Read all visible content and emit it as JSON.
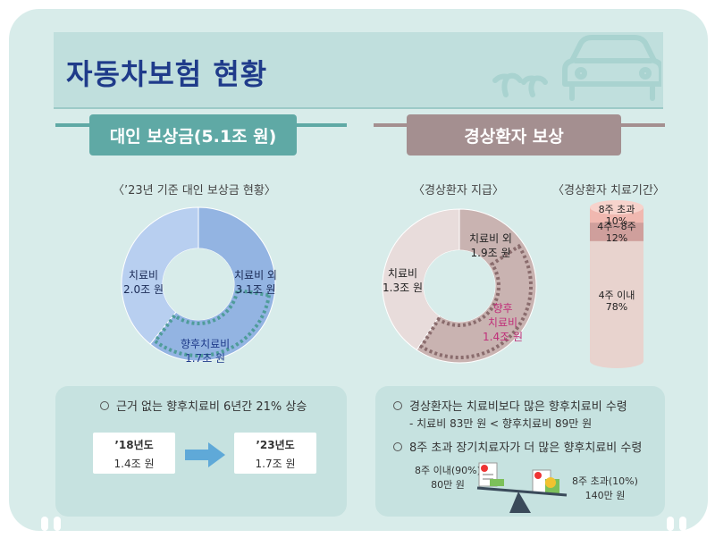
{
  "title": "자동차보험 현황",
  "left_section": {
    "header": "대인 보상금(5.1조 원)",
    "caption": "〈’23년 기준 대인 보상금 현황〉",
    "panel": {
      "bullet": "근거 없는 향후치료비 6년간 21% 상승",
      "from_year": "’18년도",
      "from_value": "1.4조 원",
      "to_year": "’23년도",
      "to_value": "1.7조 원"
    }
  },
  "right_section": {
    "header": "경상환자 보상",
    "caption_pie": "〈경상환자 지급〉",
    "caption_cyl": "〈경상환자 치료기간〉",
    "panel": {
      "bullet1": "경상환자는 치료비보다 많은 향후치료비 수령",
      "sub1": "- 치료비 83만 원 < 향후치료비 89만 원",
      "bullet2": "8주 초과 장기치료자가 더 많은 향후치료비 수령",
      "scale_left_line1": "8주 이내(90%)",
      "scale_left_line2": "80만 원",
      "scale_right_line1": "8주 초과(10%)",
      "scale_right_line2": "140만 원"
    }
  },
  "chart_data": [
    {
      "type": "pie",
      "caption": "〈’23년 기준 대인 보상금 현황〉",
      "unit": "조 원",
      "slices": [
        {
          "label": "치료비 외",
          "value": 3.1,
          "value_text": "3.1조 원",
          "color": "#93b4e2"
        },
        {
          "label": "치료비",
          "value": 2.0,
          "value_text": "2.0조 원",
          "color": "#b8cff0"
        }
      ],
      "highlight": {
        "label": "향후치료비",
        "value": 1.7,
        "value_text": "1.7조 원",
        "label_color": "#1f3b8a"
      }
    },
    {
      "type": "pie",
      "caption": "〈경상환자 지급〉",
      "unit": "조 원",
      "slices": [
        {
          "label": "치료비 외",
          "value": 1.9,
          "value_text": "1.9조 원",
          "color": "#c9b3b1"
        },
        {
          "label": "치료비",
          "value": 1.3,
          "value_text": "1.3조 원",
          "color": "#e8dcdb"
        }
      ],
      "highlight": {
        "label": "향후 치료비",
        "value": 1.4,
        "value_text": "1.4조 원",
        "label_color": "#c0307a"
      }
    },
    {
      "type": "bar",
      "caption": "〈경상환자 치료기간〉",
      "stacked": true,
      "unit": "%",
      "segments": [
        {
          "label": "8주 초과",
          "value": 10,
          "value_text": "10%",
          "color": "#f0b8b0"
        },
        {
          "label": "4주~8주",
          "value": 12,
          "value_text": "12%",
          "color": "#cf9f9c"
        },
        {
          "label": "4주 이내",
          "value": 78,
          "value_text": "78%",
          "color": "#e8d3ce"
        }
      ]
    }
  ]
}
